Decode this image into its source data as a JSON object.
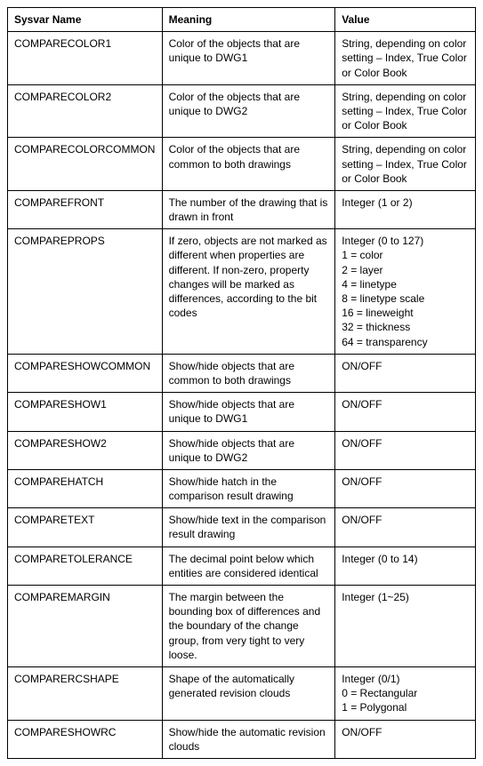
{
  "table": {
    "columns": [
      "Sysvar Name",
      "Meaning",
      "Value"
    ],
    "rows": [
      {
        "name": "COMPARECOLOR1",
        "meaning": "Color of the objects that are unique to DWG1",
        "value": [
          "String, depending on color setting – Index, True Color or Color Book"
        ]
      },
      {
        "name": "COMPARECOLOR2",
        "meaning": "Color of the objects that are unique to DWG2",
        "value": [
          "String, depending on color setting – Index, True Color or Color Book"
        ]
      },
      {
        "name": "COMPARECOLORCOMMON",
        "meaning": "Color of the objects that are common to both drawings",
        "value": [
          "String, depending on color setting – Index, True Color or Color Book"
        ]
      },
      {
        "name": "COMPAREFRONT",
        "meaning": "The number of the drawing that is drawn in front",
        "value": [
          "Integer (1 or 2)"
        ]
      },
      {
        "name": "COMPAREPROPS",
        "meaning": "If zero, objects are not marked as different when properties are different.  If non-zero, property changes will be marked as differences, according to the bit codes",
        "value": [
          "Integer (0 to 127)",
          "1 = color",
          "2 = layer",
          "4 = linetype",
          "8 = linetype scale",
          "16 = lineweight",
          "32 = thickness",
          "64 = transparency"
        ]
      },
      {
        "name": "COMPARESHOWCOMMON",
        "meaning": "Show/hide objects that are common to both drawings",
        "value": [
          "ON/OFF"
        ]
      },
      {
        "name": "COMPARESHOW1",
        "meaning": "Show/hide objects that are unique to DWG1",
        "value": [
          "ON/OFF"
        ]
      },
      {
        "name": "COMPARESHOW2",
        "meaning": "Show/hide objects that are unique to DWG2",
        "value": [
          "ON/OFF"
        ]
      },
      {
        "name": "COMPAREHATCH",
        "meaning": "Show/hide hatch in the comparison result drawing",
        "value": [
          "ON/OFF"
        ]
      },
      {
        "name": "COMPARETEXT",
        "meaning": "Show/hide text in the comparison result drawing",
        "value": [
          "ON/OFF"
        ]
      },
      {
        "name": "COMPARETOLERANCE",
        "meaning": "The decimal point below which entities are considered identical",
        "value": [
          "Integer (0 to 14)"
        ]
      },
      {
        "name": "COMPAREMARGIN",
        "meaning": "The margin between the bounding box of differences and the boundary of the change group, from very tight to very loose.",
        "value": [
          "Integer (1~25)"
        ]
      },
      {
        "name": "COMPARERCSHAPE",
        "meaning": "Shape of the automatically generated revision clouds",
        "value": [
          "Integer (0/1)",
          "0 = Rectangular",
          "1 = Polygonal"
        ]
      },
      {
        "name": "COMPARESHOWRC",
        "meaning": "Show/hide the automatic revision clouds",
        "value": [
          "ON/OFF"
        ]
      }
    ],
    "styling": {
      "border_color": "#000000",
      "background_color": "#ffffff",
      "text_color": "#000000",
      "font_size": 12,
      "header_font_weight": "bold",
      "cell_padding": "5px 7px",
      "column_widths": [
        "33%",
        "37%",
        "30%"
      ]
    }
  }
}
